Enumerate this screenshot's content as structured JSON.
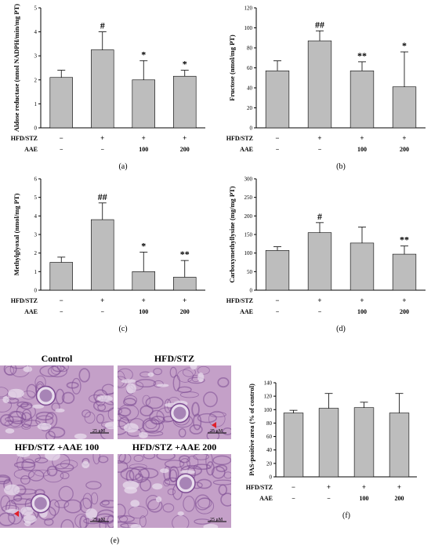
{
  "charts": [
    {
      "id": "a",
      "panel_label": "(a)",
      "ylabel": "Aldose reductase (nmol NADPH/min/mg PT)",
      "ylim": [
        0,
        5
      ],
      "yticks": [
        0,
        1,
        2,
        3,
        4,
        5
      ],
      "row1_label": "HFD/STZ",
      "row2_label": "AAE",
      "row1": [
        "−",
        "+",
        "+",
        "+"
      ],
      "row2": [
        "−",
        "−",
        "100",
        "200"
      ],
      "values": [
        2.1,
        3.25,
        2.0,
        2.15
      ],
      "errors": [
        0.3,
        0.75,
        0.8,
        0.25
      ],
      "marks": [
        "",
        "#",
        "*",
        "*"
      ]
    },
    {
      "id": "b",
      "panel_label": "(b)",
      "ylabel": "Fructose (nmol/mg PT)",
      "ylim": [
        0,
        120
      ],
      "yticks": [
        0,
        20,
        40,
        60,
        80,
        100,
        120
      ],
      "row1_label": "HFD/STZ",
      "row2_label": "AAE",
      "row1": [
        "−",
        "+",
        "+",
        "+"
      ],
      "row2": [
        "−",
        "−",
        "100",
        "200"
      ],
      "values": [
        57,
        87,
        57,
        41
      ],
      "errors": [
        10,
        10,
        9,
        35
      ],
      "marks": [
        "",
        "##",
        "**",
        "*"
      ]
    },
    {
      "id": "c",
      "panel_label": "(c)",
      "ylabel": "Methylglyoxal (nmol/mg PT)",
      "ylim": [
        0,
        6
      ],
      "yticks": [
        0,
        1,
        2,
        3,
        4,
        5,
        6
      ],
      "row1_label": "HFD/STZ",
      "row2_label": "AAE",
      "row1": [
        "−",
        "+",
        "+",
        "+"
      ],
      "row2": [
        "−",
        "−",
        "100",
        "200"
      ],
      "values": [
        1.5,
        3.8,
        1.0,
        0.7
      ],
      "errors": [
        0.28,
        0.9,
        1.05,
        0.9
      ],
      "marks": [
        "",
        "##",
        "*",
        "**"
      ]
    },
    {
      "id": "d",
      "panel_label": "(d)",
      "ylabel": "Carboxymethyllysine (mg/mg PT)",
      "ylim": [
        0,
        300
      ],
      "yticks": [
        0,
        50,
        100,
        150,
        200,
        250,
        300
      ],
      "row1_label": "HFD/STZ",
      "row2_label": "AAE",
      "row1": [
        "−",
        "+",
        "+",
        "+"
      ],
      "row2": [
        "−",
        "−",
        "100",
        "200"
      ],
      "values": [
        107,
        155,
        127,
        97
      ],
      "errors": [
        10,
        27,
        43,
        22
      ],
      "marks": [
        "",
        "#",
        "",
        "**"
      ]
    },
    {
      "id": "f",
      "panel_label": "(f)",
      "ylabel": "PAS-positive area (% of control)",
      "ylim": [
        0,
        140
      ],
      "yticks": [
        0,
        20,
        40,
        60,
        80,
        100,
        120,
        140
      ],
      "row1_label": "HFD/STZ",
      "row2_label": "AAE",
      "row1": [
        "−",
        "+",
        "+",
        "+"
      ],
      "row2": [
        "−",
        "−",
        "100",
        "200"
      ],
      "values": [
        95,
        102,
        103,
        95
      ],
      "errors": [
        4,
        22,
        8,
        29
      ],
      "marks": [
        "",
        "",
        "",
        ""
      ]
    }
  ],
  "micrographs": {
    "panel_label": "(e)",
    "scale_bar": "25 μM",
    "images": [
      {
        "title": "Control",
        "arrow": false
      },
      {
        "title": "HFD/STZ",
        "arrow": true
      },
      {
        "title": "HFD/STZ +AAE 100",
        "arrow": true
      },
      {
        "title": "HFD/STZ +AAE 200",
        "arrow": false
      }
    ],
    "colors": {
      "tissue": "#c4a0c8",
      "stain": "#7c4a92",
      "pale": "#e8dcec",
      "arrow": "#e0202a"
    }
  },
  "chart_data": [
    {
      "type": "bar",
      "categories": [
        "−/−",
        "+/−",
        "+/100",
        "+/200"
      ],
      "ylabel": "Aldose reductase (nmol NADPH/min/mg PT)",
      "ylim": [
        0,
        5
      ],
      "series": [
        {
          "values": [
            2.1,
            3.25,
            2.0,
            2.15
          ],
          "errors": [
            0.3,
            0.75,
            0.8,
            0.25
          ]
        }
      ]
    },
    {
      "type": "bar",
      "categories": [
        "−/−",
        "+/−",
        "+/100",
        "+/200"
      ],
      "ylabel": "Fructose (nmol/mg PT)",
      "ylim": [
        0,
        120
      ],
      "series": [
        {
          "values": [
            57,
            87,
            57,
            41
          ],
          "errors": [
            10,
            10,
            9,
            35
          ]
        }
      ]
    },
    {
      "type": "bar",
      "categories": [
        "−/−",
        "+/−",
        "+/100",
        "+/200"
      ],
      "ylabel": "Methylglyoxal (nmol/mg PT)",
      "ylim": [
        0,
        6
      ],
      "series": [
        {
          "values": [
            1.5,
            3.8,
            1.0,
            0.7
          ],
          "errors": [
            0.28,
            0.9,
            1.05,
            0.9
          ]
        }
      ]
    },
    {
      "type": "bar",
      "categories": [
        "−/−",
        "+/−",
        "+/100",
        "+/200"
      ],
      "ylabel": "Carboxymethyllysine (mg/mg PT)",
      "ylim": [
        0,
        300
      ],
      "series": [
        {
          "values": [
            107,
            155,
            127,
            97
          ],
          "errors": [
            10,
            27,
            43,
            22
          ]
        }
      ]
    },
    {
      "type": "bar",
      "categories": [
        "−/−",
        "+/−",
        "+/100",
        "+/200"
      ],
      "ylabel": "PAS-positive area (% of control)",
      "ylim": [
        0,
        140
      ],
      "series": [
        {
          "values": [
            95,
            102,
            103,
            95
          ],
          "errors": [
            4,
            22,
            8,
            29
          ]
        }
      ]
    }
  ]
}
